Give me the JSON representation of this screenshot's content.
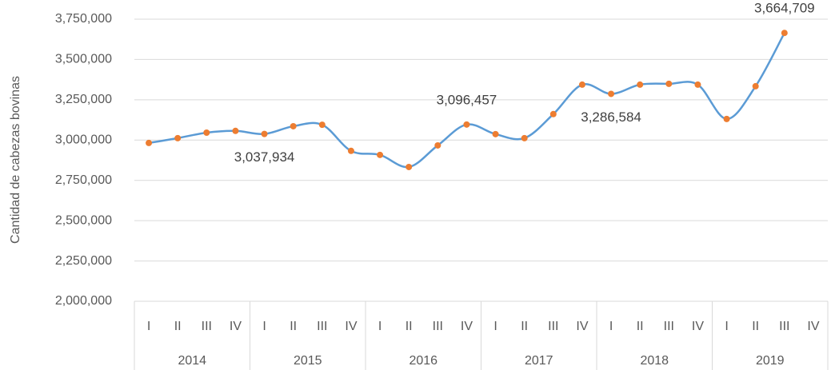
{
  "chart_data": {
    "type": "line",
    "ylabel": "Cantidad de cabezas bovinas",
    "categories": [
      "I",
      "II",
      "III",
      "IV",
      "I",
      "II",
      "III",
      "IV",
      "I",
      "II",
      "III",
      "IV",
      "I",
      "II",
      "III",
      "IV",
      "I",
      "II",
      "III",
      "IV",
      "I",
      "II",
      "III",
      "IV"
    ],
    "groups": [
      "2014",
      "2015",
      "2016",
      "2017",
      "2018",
      "2019"
    ],
    "series": [
      {
        "name": "Cantidad de cabezas bovinas",
        "color": "#5b9bd5",
        "marker_color": "#ed7d31",
        "values": [
          2982000,
          3012000,
          3046000,
          3057000,
          3037934,
          3086000,
          3095000,
          2933000,
          2908000,
          2833000,
          2967000,
          3096457,
          3037000,
          3012000,
          3161000,
          3344000,
          3286584,
          3344000,
          3349000,
          3344000,
          3131000,
          3334000,
          3664709,
          null
        ],
        "value_labels": [
          null,
          null,
          null,
          null,
          "3,037,934",
          null,
          null,
          null,
          null,
          null,
          null,
          "3,096,457",
          null,
          null,
          null,
          null,
          "3,286,584",
          null,
          null,
          null,
          null,
          null,
          "3,664,709",
          null
        ]
      }
    ],
    "ylim": [
      2000000,
      3750000
    ],
    "yticks": [
      {
        "value": 2000000,
        "label": "2,000,000"
      },
      {
        "value": 2250000,
        "label": "2,250,000"
      },
      {
        "value": 2500000,
        "label": "2,500,000"
      },
      {
        "value": 2750000,
        "label": "2,750,000"
      },
      {
        "value": 3000000,
        "label": "3,000,000"
      },
      {
        "value": 3250000,
        "label": "3,250,000"
      },
      {
        "value": 3500000,
        "label": "3,500,000"
      },
      {
        "value": 3750000,
        "label": "3,750,000"
      }
    ],
    "grid": true
  }
}
